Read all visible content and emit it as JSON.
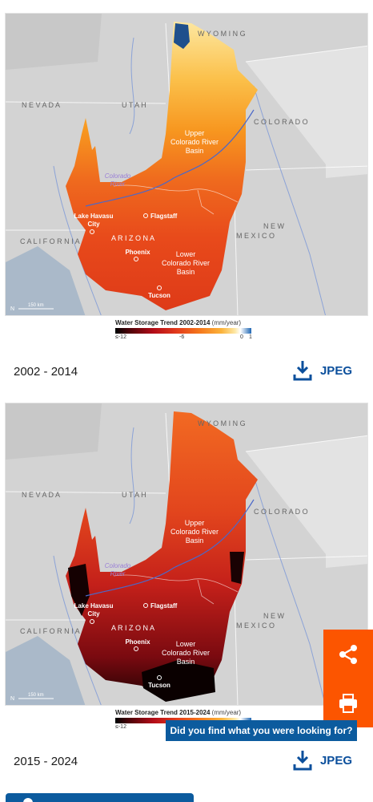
{
  "colors": {
    "brand_blue": "#0b4f9c",
    "share_orange": "#fc5500",
    "legend_gradient": [
      "#000000",
      "#4a0208",
      "#b30c18",
      "#e23a1c",
      "#f5781c",
      "#fbb33b",
      "#fde8a6",
      "#ffffff",
      "#1f67b4"
    ]
  },
  "maps": [
    {
      "period_caption": "2002 - 2014",
      "legend_title": "Water Storage Trend 2002-2014",
      "legend_unit": "(mm/year)",
      "legend_ticks": [
        "≤-12",
        "-6",
        "0",
        "1"
      ],
      "download_label": "JPEG"
    },
    {
      "period_caption": "2015 - 2024",
      "legend_title": "Water Storage Trend 2015-2024",
      "legend_unit": "(mm/year)",
      "legend_ticks": [
        "≤-12"
      ],
      "download_label": "JPEG"
    }
  ],
  "map_labels": {
    "wyoming": "W Y O M I N G",
    "nevada": "N E V A D A",
    "utah": "U T A H",
    "colorado": "C O L O R A D O",
    "new": "N E W",
    "mexico": "M E X I C O",
    "california": "C A L I F O R N I A",
    "arizona": "A R I Z O N A",
    "upper_basin": [
      "Upper",
      "Colorado River",
      "Basin"
    ],
    "lower_basin": [
      "Lower",
      "Colorado River",
      "Basin"
    ],
    "river": [
      "Colorado",
      "River"
    ],
    "cities": {
      "lake_havasu": [
        "Lake Havasu",
        "City"
      ],
      "flagstaff": "Flagstaff",
      "phoenix": "Phoenix",
      "tucson": "Tucson"
    },
    "scale": "150 km",
    "north": "N"
  },
  "feedback_label": "Did you find what you were looking for?",
  "icons": {
    "share": "share-icon",
    "print": "print-icon",
    "download": "download-icon"
  }
}
